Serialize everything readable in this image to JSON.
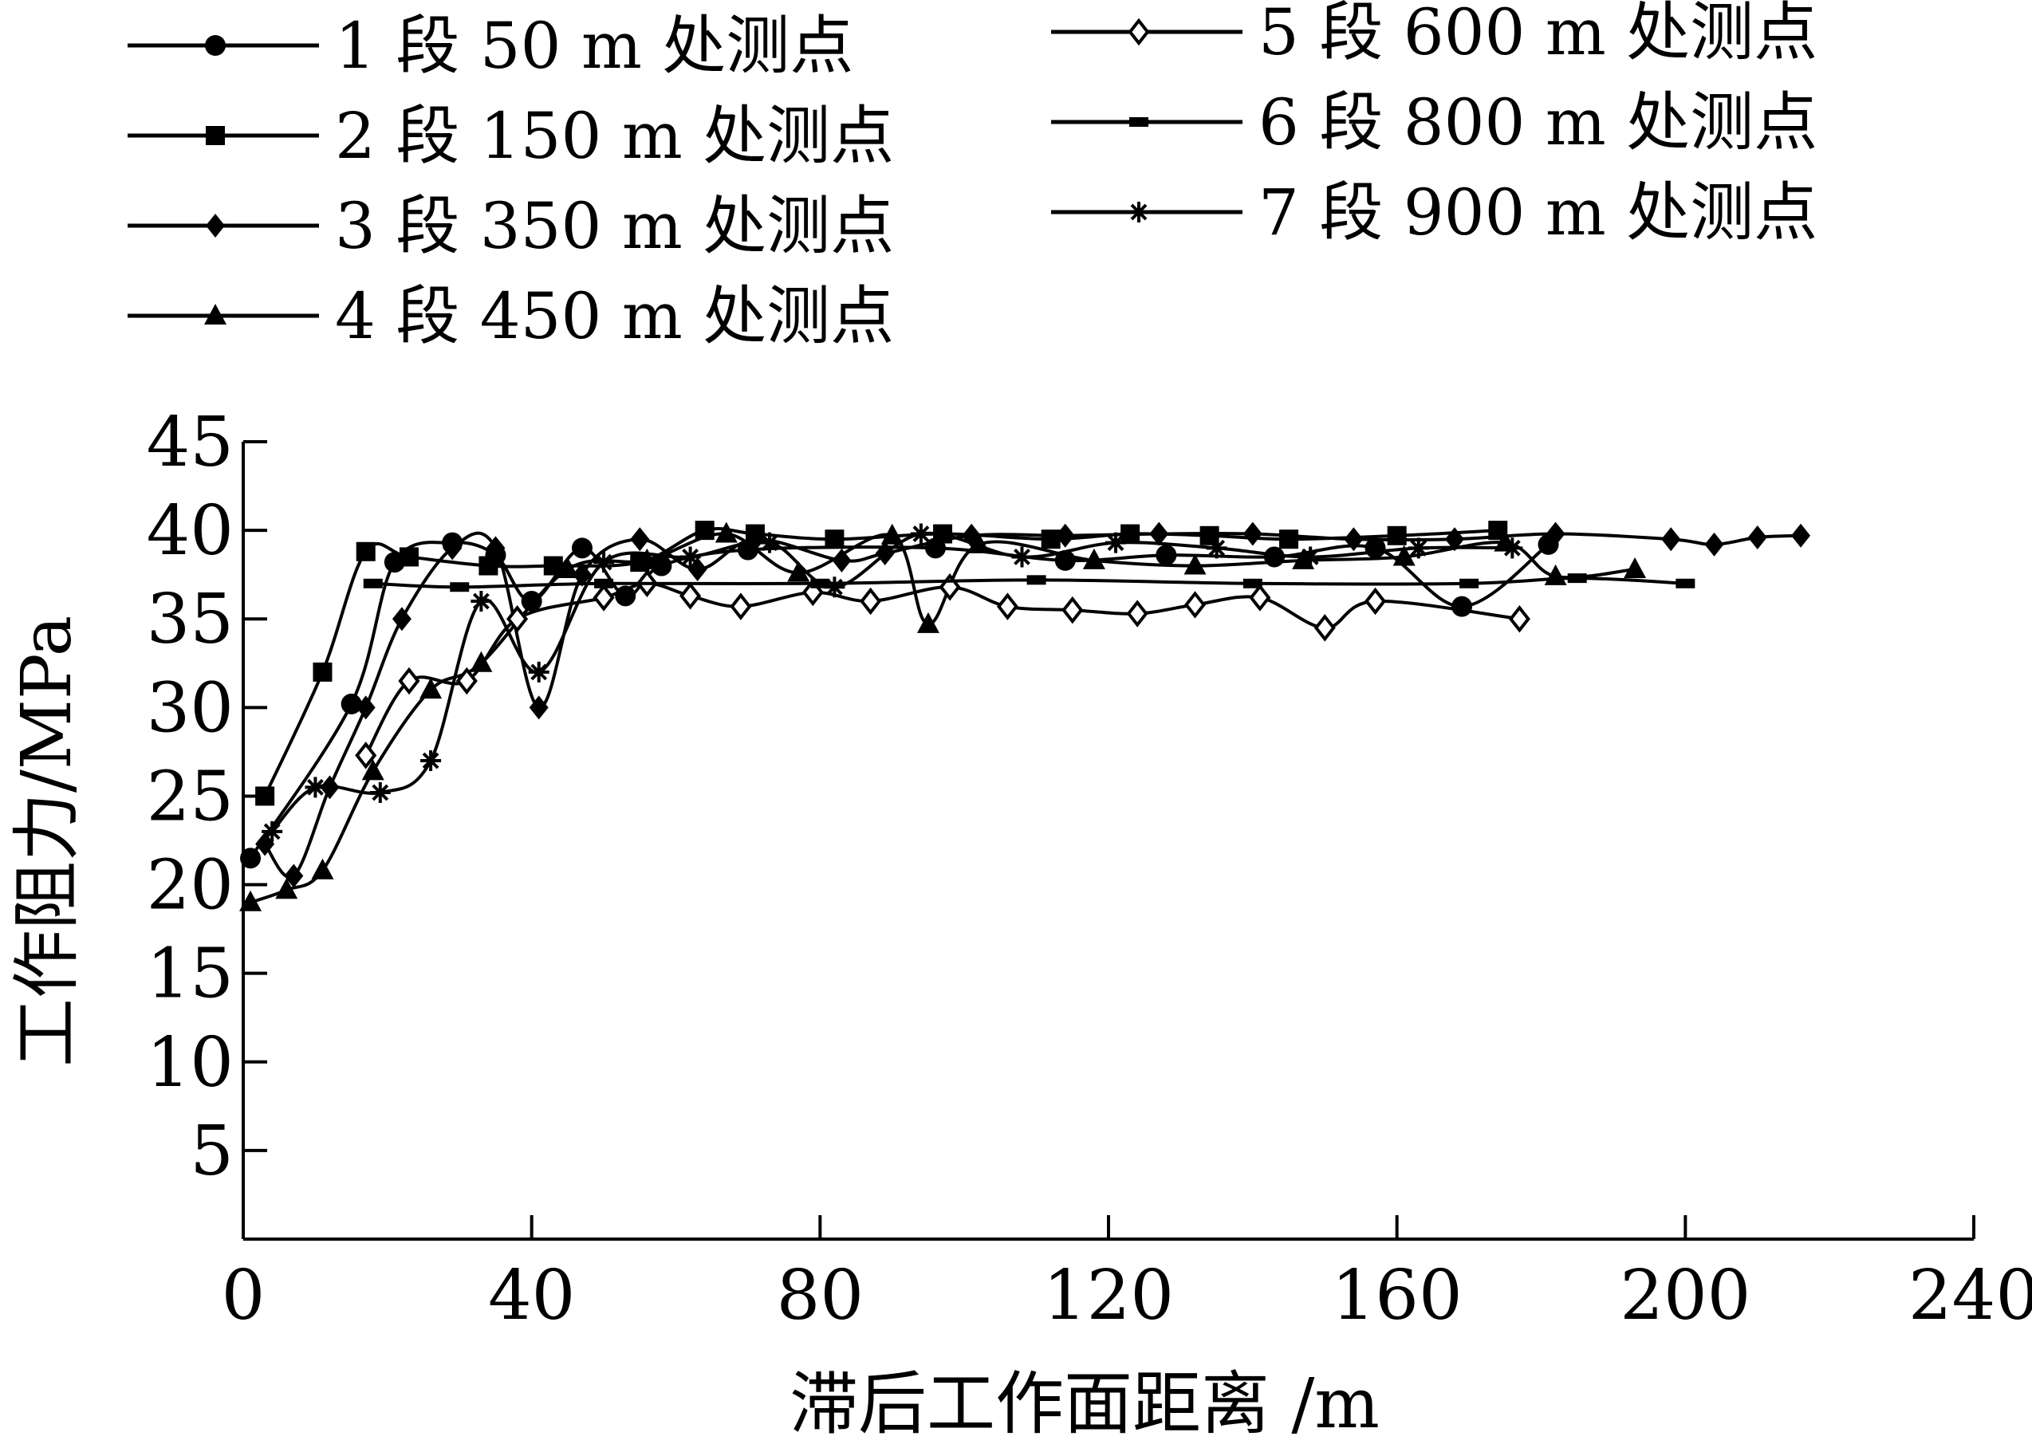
{
  "chart_data": {
    "type": "line",
    "title": "",
    "xlabel": "滞后工作面距离 /m",
    "ylabel": "工作阻力/MPa",
    "xlim": [
      0,
      240
    ],
    "ylim": [
      0,
      45
    ],
    "xticks": [
      "0",
      "40",
      "80",
      "120",
      "160",
      "200",
      "240"
    ],
    "yticks": [
      "5",
      "10",
      "15",
      "20",
      "25",
      "30",
      "35",
      "40",
      "45"
    ],
    "grid": false,
    "legend_position": "top",
    "series": [
      {
        "name": "1 段 50 m 处测点",
        "marker": "circle",
        "x": [
          1,
          15,
          21,
          29,
          35,
          40,
          47,
          53,
          58,
          70,
          96,
          114,
          128,
          143,
          157,
          169,
          181
        ],
        "y": [
          21.5,
          30.2,
          38.2,
          39.3,
          38.6,
          36,
          39,
          36.3,
          38,
          38.9,
          39,
          38.3,
          38.6,
          38.5,
          39,
          35.7,
          39.2
        ]
      },
      {
        "name": "2 段 150 m 处测点",
        "marker": "square",
        "x": [
          3,
          11,
          17,
          23,
          34,
          43,
          55,
          64,
          71,
          82,
          97,
          112,
          123,
          134,
          145,
          160,
          174
        ],
        "y": [
          25,
          32,
          38.8,
          38.5,
          38,
          38,
          38.2,
          40,
          39.8,
          39.5,
          39.8,
          39.5,
          39.8,
          39.7,
          39.5,
          39.7,
          40
        ]
      },
      {
        "name": "3 段 350 m 处测点",
        "marker": "diamond",
        "x": [
          3,
          7,
          12,
          17,
          22,
          29,
          35,
          41,
          47,
          55,
          63,
          71,
          83,
          89,
          101,
          114,
          127,
          140,
          154,
          168,
          182,
          198,
          204,
          210,
          216
        ],
        "y": [
          22.3,
          20.5,
          25.5,
          30,
          35,
          39,
          39,
          30,
          37.5,
          39.5,
          37.8,
          39.5,
          38.3,
          38.7,
          39.7,
          39.7,
          39.8,
          39.8,
          39.5,
          39.5,
          39.8,
          39.5,
          39.2,
          39.6,
          39.7
        ]
      },
      {
        "name": "4 段 450 m 处测点",
        "marker": "triangle",
        "x": [
          1,
          6,
          11,
          18,
          26,
          33,
          45,
          56,
          67,
          77,
          90,
          95,
          102,
          118,
          132,
          147,
          161,
          175,
          182,
          193
        ],
        "y": [
          19,
          19.7,
          20.8,
          26.4,
          31,
          32.5,
          37.8,
          38.3,
          39.8,
          37.6,
          39.7,
          34.7,
          39.2,
          38.3,
          38,
          38.3,
          38.5,
          39.3,
          37.4,
          37.8
        ]
      },
      {
        "name": "5 段 600 m 处测点",
        "marker": "open-diamond",
        "x": [
          17,
          23,
          31,
          38,
          50,
          56,
          62,
          69,
          79,
          87,
          98,
          106,
          115,
          124,
          132,
          141,
          150,
          157,
          177
        ],
        "y": [
          27.3,
          31.5,
          31.5,
          35,
          36.2,
          37,
          36.3,
          35.7,
          36.5,
          36,
          36.8,
          35.7,
          35.5,
          35.3,
          35.8,
          36.2,
          34.5,
          36,
          35
        ]
      },
      {
        "name": "6 段 800 m 处测点",
        "marker": "dash",
        "x": [
          18,
          30,
          50,
          80,
          110,
          140,
          170,
          185,
          200
        ],
        "y": [
          37,
          36.8,
          37,
          37,
          37.2,
          37,
          37,
          37.3,
          37
        ]
      },
      {
        "name": "7 段 900 m 处测点",
        "marker": "asterisk",
        "x": [
          4,
          10,
          19,
          26,
          33,
          41,
          50,
          62,
          73,
          82,
          94,
          108,
          121,
          135,
          148,
          163,
          176
        ],
        "y": [
          23,
          25.5,
          25.2,
          27,
          36,
          32,
          38.2,
          38.5,
          39.3,
          36.8,
          39.8,
          38.5,
          39.3,
          39,
          38.5,
          39,
          39
        ]
      }
    ]
  }
}
